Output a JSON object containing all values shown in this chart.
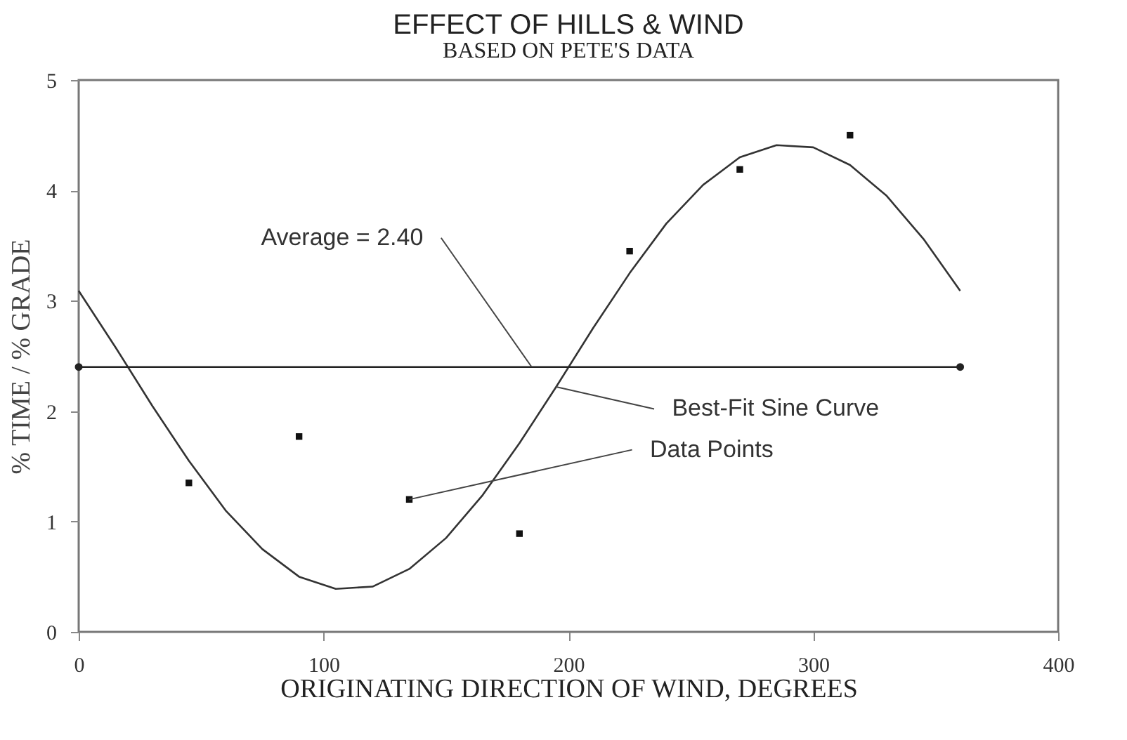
{
  "chart_data": {
    "type": "scatter",
    "title": "EFFECT OF HILLS & WIND",
    "subtitle": "BASED ON PETE'S DATA",
    "xlabel": "ORIGINATING DIRECTION OF WIND, DEGREES",
    "ylabel": "% TIME / % GRADE",
    "xlim": [
      0,
      400
    ],
    "xticks": [
      0,
      100,
      200,
      300,
      400
    ],
    "ylim": [
      0,
      5
    ],
    "yticks": [
      0,
      1,
      2,
      3,
      4,
      5
    ],
    "grid": false,
    "series": [
      {
        "color": "#111111",
        "marker": "square",
        "x": [
          45,
          90,
          135,
          180,
          225,
          270,
          315
        ],
        "values": [
          1.35,
          1.77,
          1.2,
          0.89,
          3.45,
          4.19,
          4.5
        ]
      },
      {
        "type": "line",
        "color": "#333333",
        "marker": "none",
        "line_style": "solid",
        "x": [
          0,
          15,
          30,
          45,
          60,
          75,
          90,
          105,
          120,
          135,
          150,
          165,
          180,
          195,
          210,
          225,
          240,
          255,
          270,
          285,
          300,
          315,
          330,
          345,
          360
        ],
        "values": [
          3.09,
          2.58,
          2.05,
          1.55,
          1.1,
          0.75,
          0.5,
          0.39,
          0.41,
          0.57,
          0.85,
          1.24,
          1.71,
          2.22,
          2.75,
          3.25,
          3.7,
          4.05,
          4.3,
          4.41,
          4.39,
          4.23,
          3.95,
          3.56,
          3.09
        ]
      },
      {
        "type": "line",
        "color": "#222222",
        "marker": "circle",
        "line_style": "solid",
        "x": [
          0,
          360
        ],
        "values": [
          2.4,
          2.4
        ]
      }
    ],
    "annotations": [
      {
        "text": "Average = 2.40",
        "x": 185,
        "y": 2.4
      },
      {
        "text": "Best-Fit Sine Curve",
        "x": 195,
        "y": 2.22
      },
      {
        "text": "Data Points",
        "x": 135,
        "y": 1.2
      }
    ]
  }
}
